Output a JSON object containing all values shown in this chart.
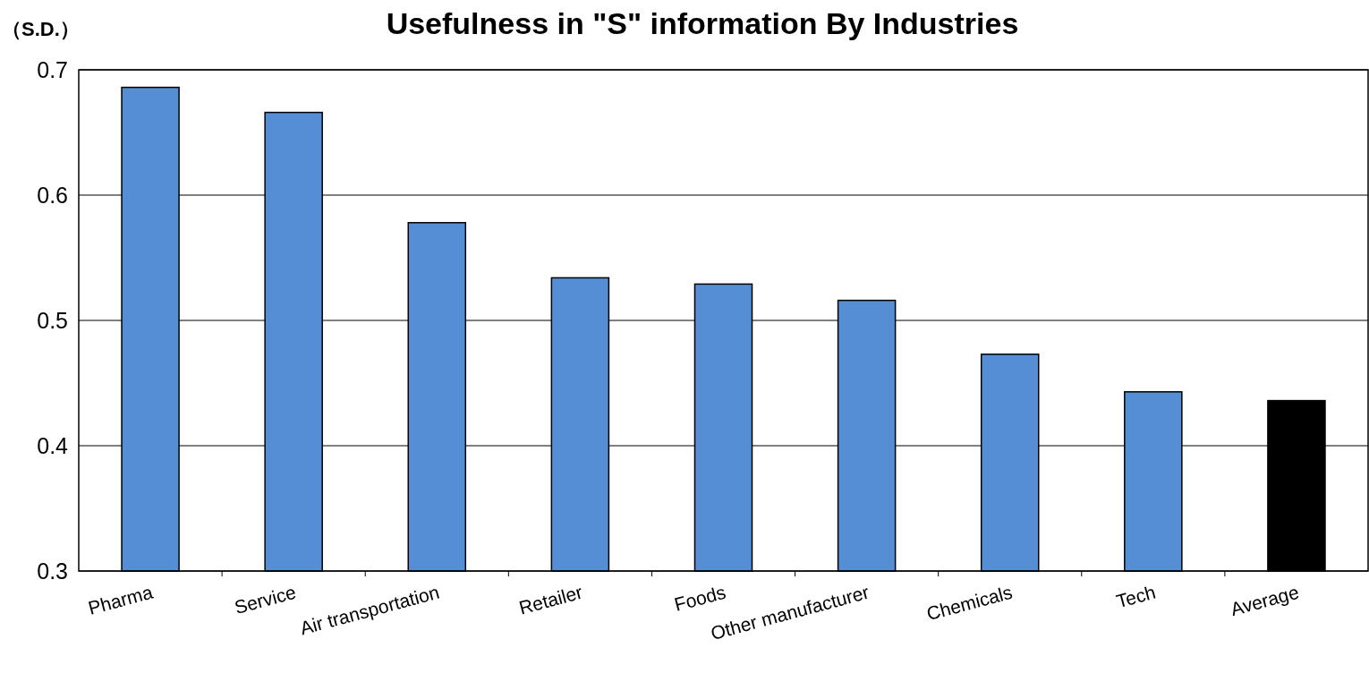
{
  "chart_data": {
    "type": "bar",
    "title": "Usefulness in \"S\" information By Industries",
    "ylabel": "（S.D.）",
    "categories": [
      "Pharma",
      "Service",
      "Air transportation",
      "Retailer",
      "Foods",
      "Other manufacturer",
      "Chemicals",
      "Tech",
      "Average"
    ],
    "values": [
      0.686,
      0.666,
      0.578,
      0.534,
      0.529,
      0.516,
      0.473,
      0.443,
      0.436
    ],
    "colors": [
      "#558ed5",
      "#558ed5",
      "#558ed5",
      "#558ed5",
      "#558ed5",
      "#558ed5",
      "#558ed5",
      "#558ed5",
      "#000000"
    ],
    "ylim": [
      0.3,
      0.7
    ],
    "yticks": [
      0.3,
      0.4,
      0.5,
      0.6,
      0.7
    ],
    "grid": "y"
  }
}
